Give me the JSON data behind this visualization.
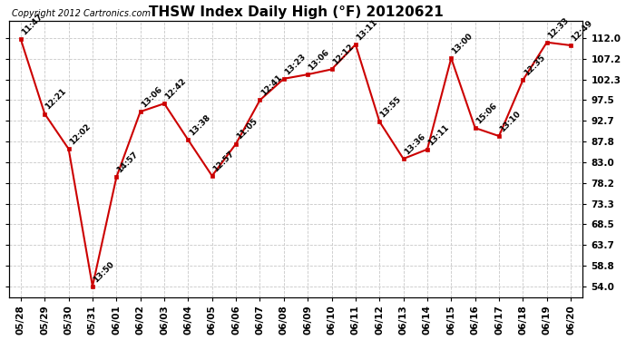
{
  "title": "THSW Index Daily High (°F) 20120621",
  "copyright": "Copyright 2012 Cartronics.com",
  "background_color": "#ffffff",
  "line_color": "#cc0000",
  "marker_color": "#cc0000",
  "grid_color": "#c8c8c8",
  "dates": [
    "05/28",
    "05/29",
    "05/30",
    "05/31",
    "06/01",
    "06/02",
    "06/03",
    "06/04",
    "06/05",
    "06/06",
    "06/07",
    "06/08",
    "06/09",
    "06/10",
    "06/11",
    "06/12",
    "06/13",
    "06/14",
    "06/15",
    "06/16",
    "06/17",
    "06/18",
    "06/19",
    "06/20"
  ],
  "values": [
    111.7,
    94.3,
    86.1,
    54.0,
    79.5,
    94.8,
    96.7,
    88.2,
    79.8,
    87.3,
    97.5,
    102.5,
    103.5,
    104.7,
    110.5,
    92.5,
    83.8,
    86.0,
    107.3,
    91.0,
    89.1,
    102.2,
    111.0,
    110.3
  ],
  "labels": [
    "11:47",
    "12:21",
    "12:02",
    "13:50",
    "14:57",
    "13:06",
    "12:42",
    "13:38",
    "12:57",
    "11:05",
    "12:41",
    "13:23",
    "13:06",
    "12:12",
    "13:11",
    "13:55",
    "13:36",
    "13:11",
    "13:00",
    "15:06",
    "13:10",
    "12:35",
    "12:33",
    "12:49"
  ],
  "ytick_values": [
    54.0,
    58.8,
    63.7,
    68.5,
    73.3,
    78.2,
    83.0,
    87.8,
    92.7,
    97.5,
    102.3,
    107.2,
    112.0
  ],
  "ytick_labels": [
    "54.0",
    "58.8",
    "63.7",
    "68.5",
    "73.3",
    "78.2",
    "83.0",
    "87.8",
    "92.7",
    "97.5",
    "102.3",
    "107.2",
    "112.0"
  ],
  "ylim": [
    51.5,
    116.0
  ],
  "figsize": [
    6.9,
    3.75
  ],
  "dpi": 100,
  "title_fontsize": 11,
  "label_fontsize": 6.5,
  "tick_fontsize": 7.5,
  "copyright_fontsize": 7.0
}
